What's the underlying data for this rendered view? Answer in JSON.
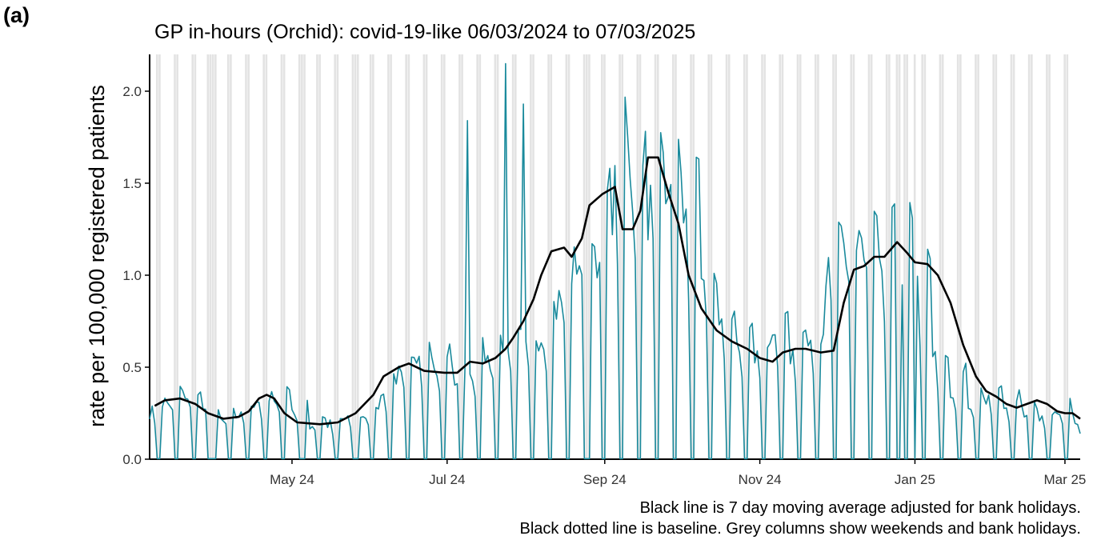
{
  "panel_label": "(a)",
  "caption_lines": [
    "Black line is 7 day moving average adjusted for bank holidays.",
    "Black dotted line is baseline. Grey columns show weekends and bank holidays."
  ],
  "chart_data": {
    "type": "line",
    "title": "GP in-hours (Orchid): covid-19-like 06/03/2024 to 07/03/2025",
    "xlabel": "",
    "ylabel": "rate per 100,000 registered patients",
    "x_start": "2024-03-06",
    "x_end": "2025-03-07",
    "ylim": [
      0,
      2.2
    ],
    "y_ticks": [
      "0.0",
      "0.5",
      "1.0",
      "1.5",
      "2.0"
    ],
    "x_ticks": [
      {
        "date": "2024-05-01",
        "label": "May 24"
      },
      {
        "date": "2024-07-01",
        "label": "Jul 24"
      },
      {
        "date": "2024-09-01",
        "label": "Sep 24"
      },
      {
        "date": "2024-11-01",
        "label": "Nov 24"
      },
      {
        "date": "2025-01-01",
        "label": "Jan 25"
      },
      {
        "date": "2025-03-01",
        "label": "Mar 25"
      }
    ],
    "bank_holidays": [
      "2024-03-29",
      "2024-04-01",
      "2024-05-06",
      "2024-05-27",
      "2024-08-26",
      "2024-12-25",
      "2024-12-26",
      "2025-01-01"
    ],
    "colors": {
      "daily": "#1a8a9c",
      "moving_average": "#000000",
      "weekend_columns": "#e3e3e3"
    },
    "series": [
      {
        "key": "daily",
        "weekly_weekday_levels": [
          0.27,
          0.32,
          0.33,
          0.27,
          0.22,
          0.24,
          0.29,
          0.35,
          0.25,
          0.2,
          0.2,
          0.22,
          0.25,
          0.36,
          0.48,
          0.52,
          0.5,
          0.48,
          0.5,
          0.57,
          0.55,
          0.6,
          0.72,
          0.9,
          1.15,
          1.22,
          1.5,
          1.52,
          1.45,
          1.7,
          1.28,
          0.9,
          0.72,
          0.6,
          0.58,
          0.62,
          0.6,
          0.6,
          1.1,
          1.15,
          1.25,
          1.1,
          1.08,
          0.92,
          0.55,
          0.4,
          0.32,
          0.32,
          0.3,
          0.27,
          0.24,
          0.25,
          0.21,
          0.2,
          0.22,
          0.15,
          0.14,
          0.11,
          0.1,
          0.12,
          0.14,
          0.13
        ],
        "peak_values": [
          {
            "date": "2024-07-24",
            "value": 2.15
          },
          {
            "date": "2024-07-31",
            "value": 1.93
          },
          {
            "date": "2024-07-09",
            "value": 1.84
          },
          {
            "date": "2024-10-01",
            "value": 1.56
          }
        ]
      },
      {
        "key": "moving_average",
        "points": [
          [
            "2024-03-08",
            0.29
          ],
          [
            "2024-03-12",
            0.32
          ],
          [
            "2024-03-18",
            0.33
          ],
          [
            "2024-03-24",
            0.3
          ],
          [
            "2024-03-29",
            0.25
          ],
          [
            "2024-04-04",
            0.22
          ],
          [
            "2024-04-10",
            0.23
          ],
          [
            "2024-04-14",
            0.26
          ],
          [
            "2024-04-18",
            0.33
          ],
          [
            "2024-04-21",
            0.35
          ],
          [
            "2024-04-24",
            0.33
          ],
          [
            "2024-04-28",
            0.25
          ],
          [
            "2024-05-03",
            0.2
          ],
          [
            "2024-05-12",
            0.19
          ],
          [
            "2024-05-19",
            0.2
          ],
          [
            "2024-05-26",
            0.25
          ],
          [
            "2024-06-02",
            0.35
          ],
          [
            "2024-06-06",
            0.45
          ],
          [
            "2024-06-12",
            0.5
          ],
          [
            "2024-06-16",
            0.52
          ],
          [
            "2024-06-22",
            0.48
          ],
          [
            "2024-06-30",
            0.47
          ],
          [
            "2024-07-05",
            0.47
          ],
          [
            "2024-07-10",
            0.53
          ],
          [
            "2024-07-15",
            0.52
          ],
          [
            "2024-07-20",
            0.55
          ],
          [
            "2024-07-24",
            0.6
          ],
          [
            "2024-07-27",
            0.66
          ],
          [
            "2024-07-31",
            0.75
          ],
          [
            "2024-08-04",
            0.87
          ],
          [
            "2024-08-07",
            1.0
          ],
          [
            "2024-08-11",
            1.13
          ],
          [
            "2024-08-16",
            1.15
          ],
          [
            "2024-08-19",
            1.1
          ],
          [
            "2024-08-23",
            1.2
          ],
          [
            "2024-08-26",
            1.38
          ],
          [
            "2024-08-31",
            1.44
          ],
          [
            "2024-09-05",
            1.48
          ],
          [
            "2024-09-08",
            1.25
          ],
          [
            "2024-09-12",
            1.25
          ],
          [
            "2024-09-15",
            1.35
          ],
          [
            "2024-09-18",
            1.64
          ],
          [
            "2024-09-22",
            1.64
          ],
          [
            "2024-09-26",
            1.45
          ],
          [
            "2024-09-30",
            1.28
          ],
          [
            "2024-10-04",
            1.0
          ],
          [
            "2024-10-09",
            0.82
          ],
          [
            "2024-10-15",
            0.7
          ],
          [
            "2024-10-21",
            0.64
          ],
          [
            "2024-10-27",
            0.6
          ],
          [
            "2024-11-01",
            0.55
          ],
          [
            "2024-11-06",
            0.53
          ],
          [
            "2024-11-10",
            0.58
          ],
          [
            "2024-11-15",
            0.6
          ],
          [
            "2024-11-19",
            0.6
          ],
          [
            "2024-11-25",
            0.58
          ],
          [
            "2024-11-30",
            0.59
          ],
          [
            "2024-12-04",
            0.85
          ],
          [
            "2024-12-08",
            1.03
          ],
          [
            "2024-12-12",
            1.05
          ],
          [
            "2024-12-16",
            1.1
          ],
          [
            "2024-12-20",
            1.1
          ],
          [
            "2024-12-25",
            1.18
          ],
          [
            "2024-12-29",
            1.12
          ],
          [
            "2025-01-01",
            1.07
          ],
          [
            "2025-01-06",
            1.06
          ],
          [
            "2025-01-10",
            1.0
          ],
          [
            "2025-01-15",
            0.85
          ],
          [
            "2025-01-20",
            0.62
          ],
          [
            "2025-01-25",
            0.45
          ],
          [
            "2025-01-29",
            0.37
          ],
          [
            "2025-02-02",
            0.34
          ],
          [
            "2025-02-06",
            0.3
          ],
          [
            "2025-02-10",
            0.28
          ],
          [
            "2025-02-14",
            0.3
          ],
          [
            "2025-02-18",
            0.32
          ],
          [
            "2025-02-22",
            0.3
          ],
          [
            "2025-02-26",
            0.26
          ],
          [
            "2025-03-01",
            0.25
          ],
          [
            "2025-03-04",
            0.25
          ],
          [
            "2025-03-07",
            0.22
          ]
        ]
      }
    ]
  }
}
